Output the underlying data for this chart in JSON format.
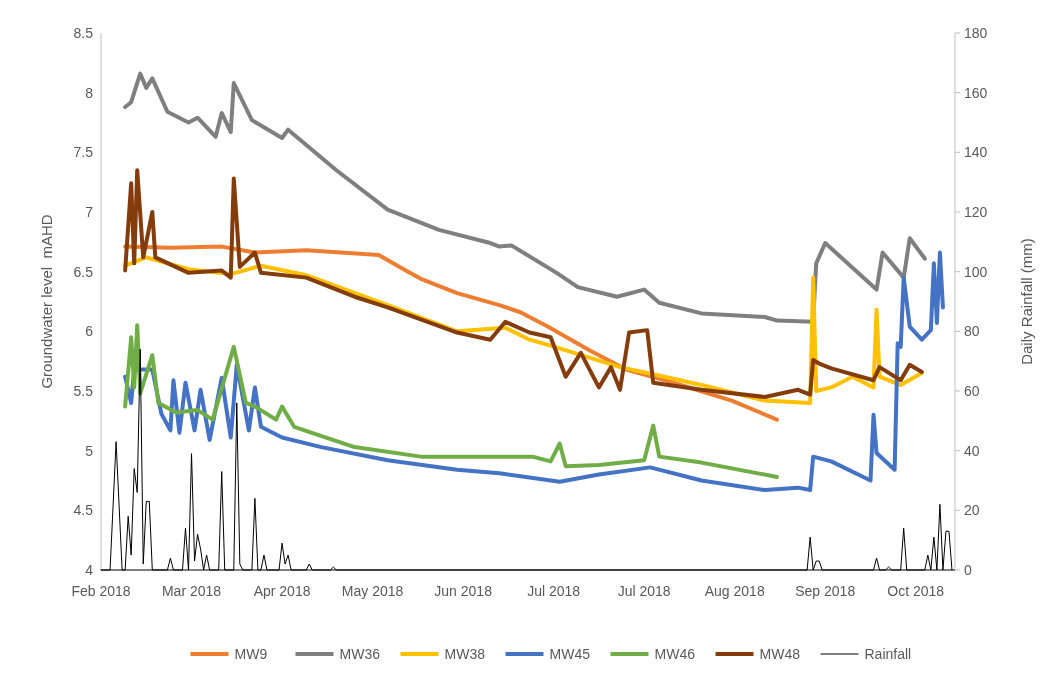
{
  "chart_data": {
    "type": "line",
    "ylabel": "Groundwater level  mAHD",
    "y2label": "Daily Rainfall (mm)",
    "xlim": [
      "2018-02-01",
      "2018-11-11"
    ],
    "xticks": [
      {
        "value": "2018-02-01",
        "label": "Feb 2018"
      },
      {
        "value": "2018-03-03",
        "label": "Mar 2018"
      },
      {
        "value": "2018-04-02",
        "label": "Apr 2018"
      },
      {
        "value": "2018-05-02",
        "label": "May 2018"
      },
      {
        "value": "2018-06-01",
        "label": "Jun 2018"
      },
      {
        "value": "2018-07-01",
        "label": "Jul 2018"
      },
      {
        "value": "2018-07-31",
        "label": "Jul 2018"
      },
      {
        "value": "2018-08-30",
        "label": "Aug 2018"
      },
      {
        "value": "2018-09-29",
        "label": "Sep 2018"
      },
      {
        "value": "2018-10-29",
        "label": "Oct 2018"
      }
    ],
    "ylim": [
      4,
      8.5
    ],
    "yticks": [
      4,
      4.5,
      5,
      5.5,
      6,
      6.5,
      7,
      7.5,
      8,
      8.5
    ],
    "y2lim": [
      0,
      180
    ],
    "y2ticks": [
      0,
      20,
      40,
      60,
      80,
      100,
      120,
      140,
      160,
      180
    ],
    "grid": false,
    "legend": "bottom",
    "marker": "none",
    "line_style": "solid",
    "series": [
      {
        "name": "MW9",
        "color": "#ed7d31",
        "x": [
          "2018-02-09",
          "2018-02-24",
          "2018-03-13",
          "2018-03-24",
          "2018-04-10",
          "2018-05-04",
          "2018-05-13",
          "2018-05-18",
          "2018-05-30",
          "2018-06-13",
          "2018-06-20",
          "2018-06-29",
          "2018-07-13",
          "2018-07-25",
          "2018-08-07",
          "2018-08-29",
          "2018-09-13"
        ],
        "values": [
          6.71,
          6.7,
          6.71,
          6.66,
          6.68,
          6.64,
          6.51,
          6.44,
          6.32,
          6.22,
          6.16,
          6.04,
          5.84,
          5.68,
          5.59,
          5.42,
          5.26
        ]
      },
      {
        "name": "MW36",
        "color": "#7f7f7f",
        "x": [
          "2018-02-09",
          "2018-02-11",
          "2018-02-14",
          "2018-02-16",
          "2018-02-18",
          "2018-02-23",
          "2018-03-02",
          "2018-03-05",
          "2018-03-11",
          "2018-03-13",
          "2018-03-16",
          "2018-03-17",
          "2018-03-23",
          "2018-04-02",
          "2018-04-04",
          "2018-04-20",
          "2018-05-07",
          "2018-05-24",
          "2018-06-10",
          "2018-06-13",
          "2018-06-17",
          "2018-07-02",
          "2018-07-09",
          "2018-07-22",
          "2018-07-31",
          "2018-08-05",
          "2018-08-19",
          "2018-09-09",
          "2018-09-13",
          "2018-09-25",
          "2018-09-26",
          "2018-09-29",
          "2018-10-16",
          "2018-10-18",
          "2018-10-25",
          "2018-10-27",
          "2018-11-01"
        ],
        "values": [
          7.88,
          7.92,
          8.16,
          8.04,
          8.12,
          7.84,
          7.75,
          7.79,
          7.63,
          7.83,
          7.67,
          8.08,
          7.77,
          7.62,
          7.69,
          7.35,
          7.02,
          6.85,
          6.74,
          6.71,
          6.72,
          6.49,
          6.37,
          6.29,
          6.35,
          6.24,
          6.15,
          6.12,
          6.09,
          6.08,
          6.57,
          6.74,
          6.35,
          6.66,
          6.45,
          6.78,
          6.61
        ]
      },
      {
        "name": "MW38",
        "color": "#ffc000",
        "x": [
          "2018-02-09",
          "2018-02-16",
          "2018-03-02",
          "2018-03-16",
          "2018-03-26",
          "2018-04-10",
          "2018-05-07",
          "2018-05-30",
          "2018-06-15",
          "2018-06-23",
          "2018-06-30",
          "2018-07-23",
          "2018-08-03",
          "2018-08-19",
          "2018-09-09",
          "2018-09-24",
          "2018-09-25",
          "2018-09-26",
          "2018-10-01",
          "2018-10-08",
          "2018-10-15",
          "2018-10-16",
          "2018-10-17",
          "2018-10-24",
          "2018-10-31"
        ],
        "values": [
          6.55,
          6.62,
          6.52,
          6.48,
          6.55,
          6.47,
          6.22,
          6.0,
          6.03,
          5.93,
          5.88,
          5.7,
          5.64,
          5.55,
          5.42,
          5.4,
          6.45,
          5.5,
          5.53,
          5.62,
          5.53,
          6.18,
          5.62,
          5.55,
          5.65
        ]
      },
      {
        "name": "MW45",
        "color": "#4472c4",
        "x": [
          "2018-02-09",
          "2018-02-11",
          "2018-02-12",
          "2018-02-18",
          "2018-02-21",
          "2018-02-24",
          "2018-02-25",
          "2018-02-27",
          "2018-03-01",
          "2018-03-04",
          "2018-03-06",
          "2018-03-09",
          "2018-03-13",
          "2018-03-16",
          "2018-03-18",
          "2018-03-22",
          "2018-03-24",
          "2018-03-26",
          "2018-04-02",
          "2018-04-15",
          "2018-05-07",
          "2018-05-30",
          "2018-06-13",
          "2018-07-03",
          "2018-07-16",
          "2018-08-02",
          "2018-08-19",
          "2018-09-09",
          "2018-09-20",
          "2018-09-24",
          "2018-09-25",
          "2018-10-01",
          "2018-10-14",
          "2018-10-15",
          "2018-10-16",
          "2018-10-22",
          "2018-10-23",
          "2018-10-24",
          "2018-10-25",
          "2018-10-27",
          "2018-10-31",
          "2018-11-03",
          "2018-11-04",
          "2018-11-05",
          "2018-11-06",
          "2018-11-07"
        ],
        "values": [
          5.62,
          5.4,
          5.68,
          5.68,
          5.31,
          5.17,
          5.59,
          5.15,
          5.57,
          5.17,
          5.51,
          5.09,
          5.61,
          5.11,
          5.72,
          5.17,
          5.53,
          5.2,
          5.11,
          5.03,
          4.92,
          4.84,
          4.81,
          4.74,
          4.8,
          4.86,
          4.75,
          4.67,
          4.69,
          4.67,
          4.95,
          4.91,
          4.75,
          5.3,
          4.98,
          4.84,
          5.9,
          5.87,
          6.45,
          6.04,
          5.93,
          6.01,
          6.57,
          6.07,
          6.66,
          6.2
        ]
      },
      {
        "name": "MW46",
        "color": "#70ad47",
        "x": [
          "2018-02-09",
          "2018-02-11",
          "2018-02-12",
          "2018-02-13",
          "2018-02-14",
          "2018-02-18",
          "2018-02-20",
          "2018-02-26",
          "2018-03-05",
          "2018-03-10",
          "2018-03-17",
          "2018-03-21",
          "2018-03-24",
          "2018-03-31",
          "2018-04-02",
          "2018-04-06",
          "2018-04-26",
          "2018-05-18",
          "2018-06-10",
          "2018-06-24",
          "2018-06-30",
          "2018-07-03",
          "2018-07-05",
          "2018-07-16",
          "2018-07-31",
          "2018-08-03",
          "2018-08-05",
          "2018-08-19",
          "2018-09-13"
        ],
        "values": [
          5.37,
          5.95,
          5.53,
          6.05,
          5.48,
          5.8,
          5.4,
          5.32,
          5.34,
          5.26,
          5.87,
          5.4,
          5.37,
          5.26,
          5.37,
          5.2,
          5.03,
          4.95,
          4.95,
          4.95,
          4.91,
          5.06,
          4.87,
          4.88,
          4.92,
          5.21,
          4.95,
          4.9,
          4.78
        ]
      },
      {
        "name": "MW48",
        "color": "#843c0c",
        "x": [
          "2018-02-09",
          "2018-02-11",
          "2018-02-12",
          "2018-02-13",
          "2018-02-15",
          "2018-02-18",
          "2018-02-19",
          "2018-03-02",
          "2018-03-13",
          "2018-03-16",
          "2018-03-17",
          "2018-03-19",
          "2018-03-24",
          "2018-03-26",
          "2018-04-10",
          "2018-04-26",
          "2018-05-07",
          "2018-05-30",
          "2018-06-10",
          "2018-06-15",
          "2018-06-23",
          "2018-06-30",
          "2018-07-05",
          "2018-07-10",
          "2018-07-16",
          "2018-07-20",
          "2018-07-23",
          "2018-07-26",
          "2018-08-01",
          "2018-08-03",
          "2018-08-19",
          "2018-09-09",
          "2018-09-20",
          "2018-09-24",
          "2018-09-25",
          "2018-09-27",
          "2018-10-01",
          "2018-10-15",
          "2018-10-17",
          "2018-10-24",
          "2018-10-27",
          "2018-10-31"
        ],
        "values": [
          6.51,
          7.24,
          6.57,
          7.35,
          6.62,
          7.0,
          6.62,
          6.49,
          6.51,
          6.45,
          7.28,
          6.54,
          6.66,
          6.49,
          6.45,
          6.29,
          6.2,
          5.99,
          5.93,
          6.08,
          5.99,
          5.95,
          5.62,
          5.82,
          5.53,
          5.7,
          5.51,
          5.99,
          6.01,
          5.57,
          5.51,
          5.45,
          5.51,
          5.47,
          5.76,
          5.73,
          5.69,
          5.59,
          5.7,
          5.59,
          5.72,
          5.66
        ]
      },
      {
        "name": "Rainfall",
        "color": "#000000",
        "axis": "y2",
        "x": [
          "2018-02-01",
          "2018-02-04",
          "2018-02-06",
          "2018-02-08",
          "2018-02-09",
          "2018-02-10",
          "2018-02-11",
          "2018-02-12",
          "2018-02-13",
          "2018-02-14",
          "2018-02-15",
          "2018-02-16",
          "2018-02-17",
          "2018-02-18",
          "2018-02-23",
          "2018-02-24",
          "2018-02-25",
          "2018-02-28",
          "2018-03-01",
          "2018-03-02",
          "2018-03-03",
          "2018-03-04",
          "2018-03-05",
          "2018-03-06",
          "2018-03-07",
          "2018-03-08",
          "2018-03-09",
          "2018-03-12",
          "2018-03-13",
          "2018-03-14",
          "2018-03-17",
          "2018-03-18",
          "2018-03-19",
          "2018-03-20",
          "2018-03-23",
          "2018-03-24",
          "2018-03-25",
          "2018-03-26",
          "2018-03-27",
          "2018-03-28",
          "2018-04-01",
          "2018-04-02",
          "2018-04-03",
          "2018-04-04",
          "2018-04-05",
          "2018-04-10",
          "2018-04-11",
          "2018-04-12",
          "2018-04-18",
          "2018-04-19",
          "2018-04-20",
          "2018-09-23",
          "2018-09-24",
          "2018-09-25",
          "2018-09-26",
          "2018-09-27",
          "2018-09-28",
          "2018-10-15",
          "2018-10-16",
          "2018-10-17",
          "2018-10-19",
          "2018-10-20",
          "2018-10-21",
          "2018-10-24",
          "2018-10-25",
          "2018-10-26",
          "2018-11-01",
          "2018-11-02",
          "2018-11-03",
          "2018-11-04",
          "2018-11-05",
          "2018-11-06",
          "2018-11-07",
          "2018-11-08",
          "2018-11-09",
          "2018-11-10"
        ],
        "values": [
          0,
          0,
          43,
          0,
          0,
          18,
          5,
          34,
          26,
          74,
          2,
          23,
          23,
          0,
          0,
          4,
          0,
          0,
          14,
          0,
          39,
          3,
          12,
          7,
          0,
          5,
          0,
          0,
          33,
          0,
          0,
          56,
          2,
          0,
          0,
          24,
          0,
          0,
          5,
          0,
          0,
          9,
          2,
          5,
          0,
          0,
          2,
          0,
          0,
          1,
          0,
          0,
          11,
          0,
          3,
          3,
          0,
          0,
          4,
          0,
          0,
          1,
          0,
          0,
          14,
          0,
          0,
          5,
          0,
          11,
          0,
          22,
          0,
          13,
          13,
          0
        ]
      }
    ]
  }
}
